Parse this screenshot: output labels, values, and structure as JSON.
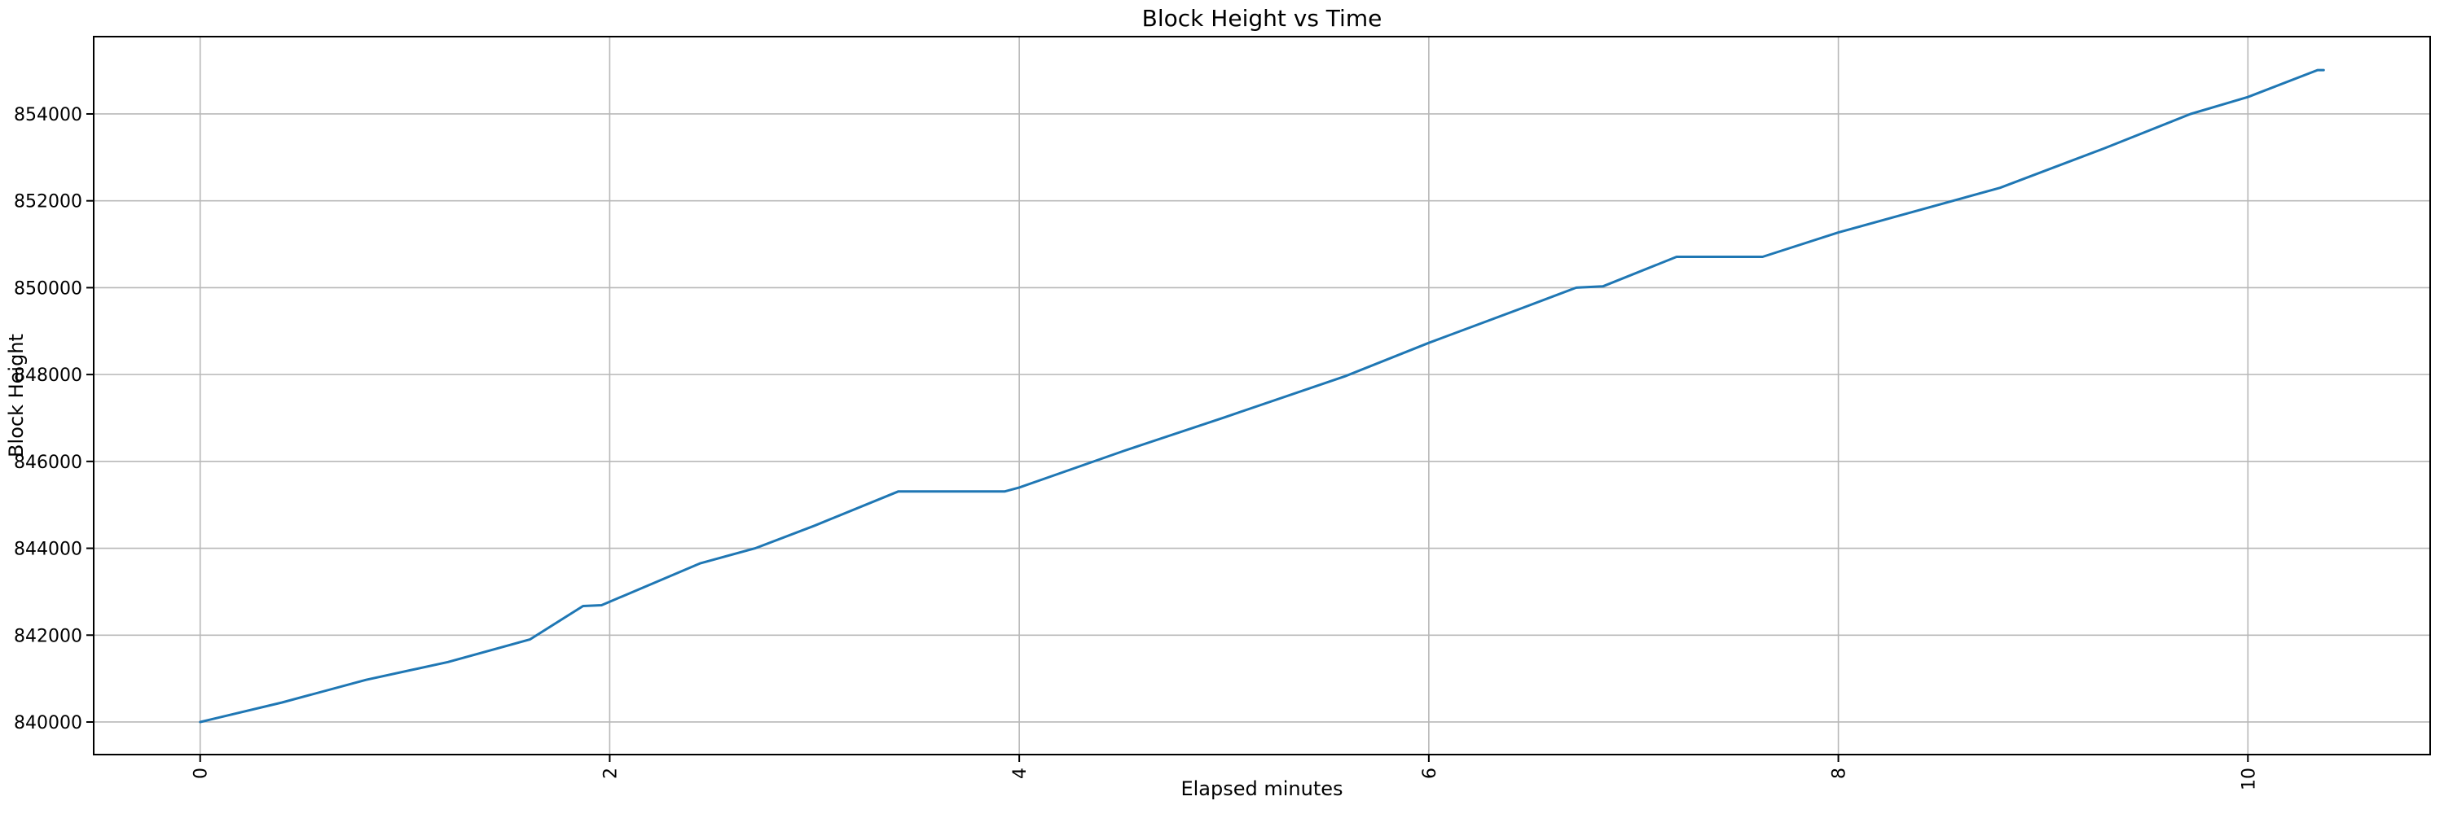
{
  "chart_data": {
    "type": "line",
    "title": "Block Height vs Time",
    "xlabel": "Elapsed minutes",
    "ylabel": "Block Height",
    "x_tick_labels": [
      "0",
      "2",
      "4",
      "6",
      "8",
      "10"
    ],
    "x_tick_values": [
      0,
      2,
      4,
      6,
      8,
      10
    ],
    "y_tick_labels": [
      "840000",
      "842000",
      "844000",
      "846000",
      "848000",
      "850000",
      "852000",
      "854000"
    ],
    "y_tick_values": [
      840000,
      842000,
      844000,
      846000,
      848000,
      850000,
      852000,
      854000
    ],
    "xlim": [
      -0.52,
      10.89
    ],
    "ylim": [
      839250,
      855780
    ],
    "grid": true,
    "legend": null,
    "x_tick_rotation_deg": 90,
    "colors": {
      "line": "#1f77b4",
      "grid": "#b8b8b8",
      "spine": "#000000",
      "text": "#000000",
      "background": "#ffffff"
    },
    "series": [
      {
        "name": "block-height-vs-time",
        "x": [
          0.0,
          0.4,
          0.81,
          1.21,
          1.61,
          1.87,
          1.96,
          2.44,
          2.71,
          3.0,
          3.41,
          3.93,
          4.0,
          4.51,
          5.0,
          5.59,
          6.0,
          6.45,
          6.72,
          6.85,
          7.21,
          7.63,
          8.0,
          8.79,
          9.3,
          9.72,
          10.0,
          10.34,
          10.37
        ],
        "y": [
          840000,
          840450,
          840970,
          841380,
          841900,
          842670,
          842690,
          843650,
          844000,
          844520,
          845310,
          845310,
          845400,
          846240,
          847010,
          847960,
          848730,
          849520,
          850000,
          850030,
          850710,
          850710,
          851270,
          852300,
          853210,
          854000,
          854390,
          855010,
          855010
        ]
      }
    ]
  }
}
